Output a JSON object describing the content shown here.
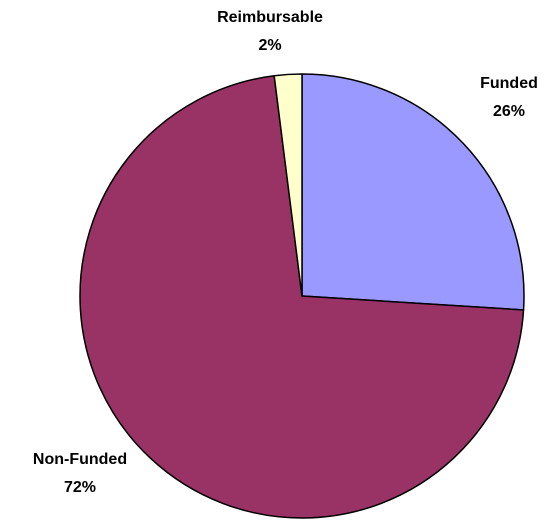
{
  "chart_data": {
    "type": "pie",
    "start_angle_deg": 0,
    "direction": "clockwise",
    "slices": [
      {
        "label": "Funded",
        "percent_label": "26%",
        "value": 26,
        "color": "#9999ff"
      },
      {
        "label": "Non-Funded",
        "percent_label": "72%",
        "value": 72,
        "color": "#993366"
      },
      {
        "label": "Reimbursable",
        "percent_label": "2%",
        "value": 2,
        "color": "#ffffcc"
      }
    ]
  }
}
